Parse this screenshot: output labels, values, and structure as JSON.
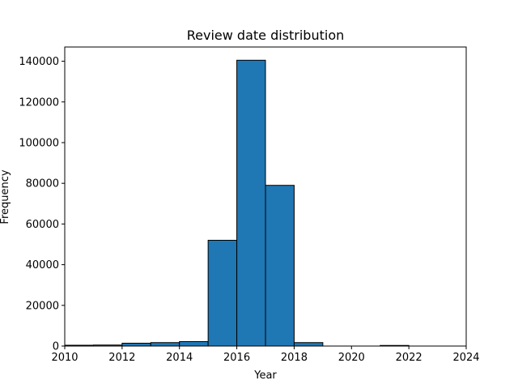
{
  "chart_data": {
    "type": "bar",
    "title": "Review date distribution",
    "xlabel": "Year",
    "ylabel": "Frequency",
    "xlim": [
      2010,
      2024
    ],
    "ylim": [
      0,
      147000
    ],
    "xticks": [
      2010,
      2012,
      2014,
      2016,
      2018,
      2020,
      2022,
      2024
    ],
    "yticks": [
      0,
      20000,
      40000,
      60000,
      80000,
      100000,
      120000,
      140000
    ],
    "bins": [
      {
        "start": 2010,
        "end": 2011,
        "value": 400
      },
      {
        "start": 2011,
        "end": 2012,
        "value": 500
      },
      {
        "start": 2012,
        "end": 2013,
        "value": 1400
      },
      {
        "start": 2013,
        "end": 2014,
        "value": 1700
      },
      {
        "start": 2014,
        "end": 2015,
        "value": 2200
      },
      {
        "start": 2015,
        "end": 2016,
        "value": 52000
      },
      {
        "start": 2016,
        "end": 2017,
        "value": 140500
      },
      {
        "start": 2017,
        "end": 2018,
        "value": 79000
      },
      {
        "start": 2018,
        "end": 2019,
        "value": 1700
      },
      {
        "start": 2019,
        "end": 2020,
        "value": 0
      },
      {
        "start": 2020,
        "end": 2021,
        "value": 0
      },
      {
        "start": 2021,
        "end": 2022,
        "value": 300
      },
      {
        "start": 2022,
        "end": 2023,
        "value": 0
      },
      {
        "start": 2023,
        "end": 2024,
        "value": 0
      }
    ],
    "grid": false,
    "bar_color": "#1f77b4",
    "edge_color": "#000000"
  }
}
